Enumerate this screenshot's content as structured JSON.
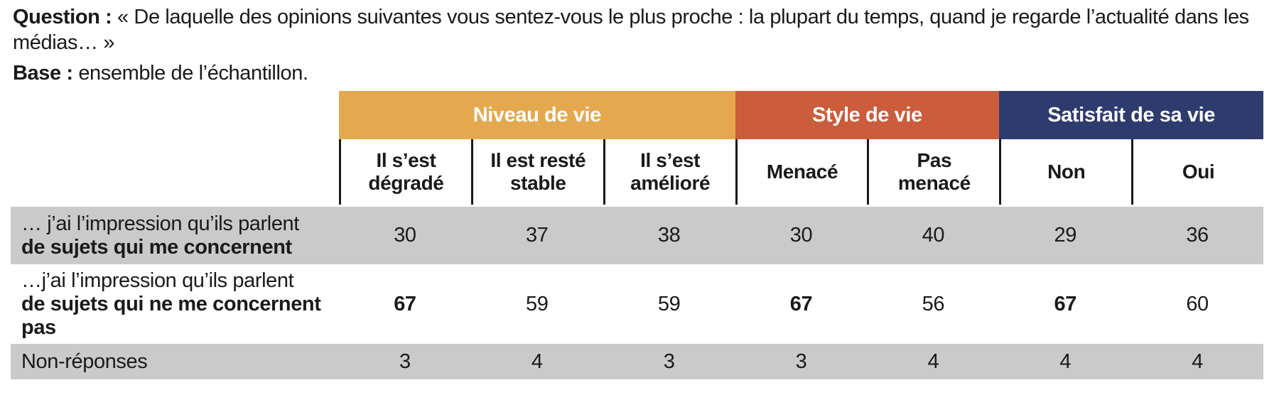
{
  "intro": {
    "question_label": "Question :",
    "question_text": " « De laquelle des opinions suivantes vous sentez-vous le plus proche : la plupart du temps, quand je regarde l’actualité dans les médias… »",
    "base_label": "Base :",
    "base_text": " ensemble de l’échantillon."
  },
  "table": {
    "groups": [
      {
        "label": "Niveau de vie",
        "color": "#E4A94E",
        "span": 3
      },
      {
        "label": "Style de vie",
        "color": "#CB5C3C",
        "span": 2
      },
      {
        "label": "Satisfait de sa vie",
        "color": "#2E3B6F",
        "span": 2
      }
    ],
    "columns": [
      "Il s’est\ndégradé",
      "Il est resté\nstable",
      "Il s’est\namélioré",
      "Menacé",
      "Pas\nmenacé",
      "Non",
      "Oui"
    ],
    "rows": [
      {
        "label_line1": "… j’ai l’impression qu’ils parlent",
        "label_line2": "de sujets qui me concernent",
        "label_line3": "",
        "values": [
          30,
          37,
          38,
          30,
          40,
          29,
          36
        ],
        "bold_value_indexes": [],
        "shaded": true
      },
      {
        "label_line1": "…j’ai l’impression qu’ils parlent",
        "label_line2": "de sujets qui ne me concernent",
        "label_line3": "pas",
        "values": [
          67,
          59,
          59,
          67,
          56,
          67,
          60
        ],
        "bold_value_indexes": [
          0,
          3,
          5
        ],
        "shaded": false
      },
      {
        "label_line1": "Non-réponses",
        "label_line2": "",
        "label_line3": "",
        "values": [
          3,
          4,
          3,
          3,
          4,
          4,
          4
        ],
        "bold_value_indexes": [],
        "shaded": true
      }
    ],
    "colors": {
      "shaded_row": "#CACACA",
      "text": "#1A1A1A",
      "group_niveau": "#E4A94E",
      "group_style": "#CB5C3C",
      "group_satisfait": "#2E3B6F"
    }
  }
}
